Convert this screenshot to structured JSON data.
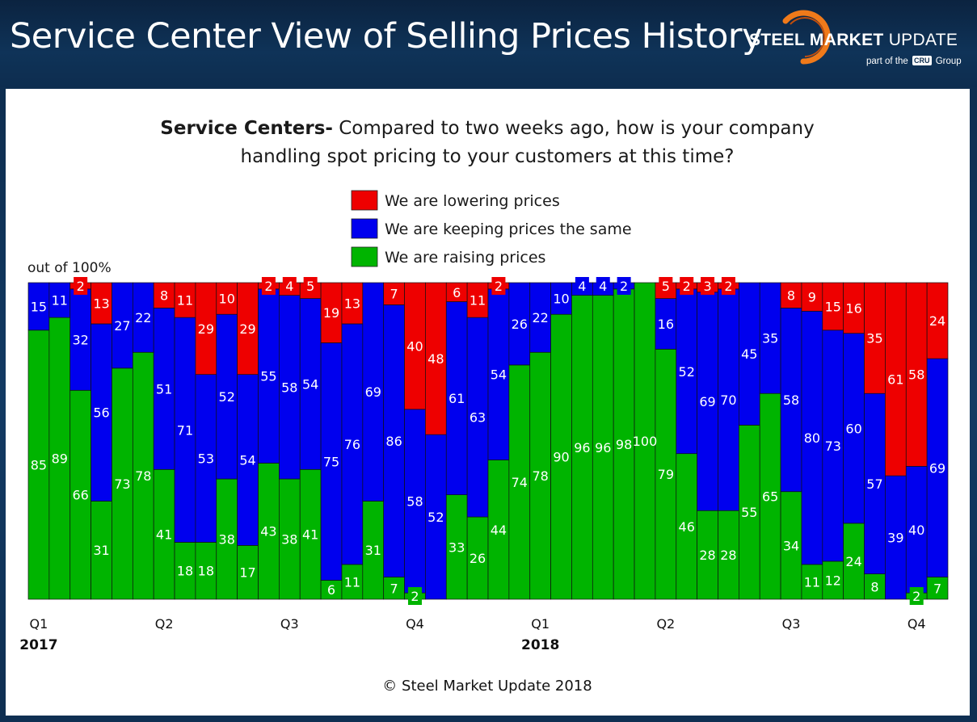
{
  "header": {
    "title": "Service Center View of Selling Prices History",
    "logo": {
      "brand": "STEEL MARKET UPDATE",
      "brand_bold": "STEEL MARKET",
      "brand_rest": "UPDATE",
      "tagline_pre": "part of the",
      "tagline_cru": "CRU",
      "tagline_post": "Group"
    }
  },
  "colors": {
    "lowering": "#ee0000",
    "same": "#0000ee",
    "raising": "#00b400",
    "header_bg": "#0f3358",
    "logo_arc": "#f07a1a"
  },
  "chart_data": {
    "type": "bar",
    "stacked": true,
    "question_bold": "Service Centers-",
    "question_line1": "Compared to two weeks ago, how is your company",
    "question_line2": "handling spot pricing to your customers at this time?",
    "ylabel": "out of 100%",
    "ylim": [
      0,
      100
    ],
    "grid": false,
    "legend_position": "top-center",
    "series": [
      {
        "name": "We are lowering prices",
        "key": "lowering",
        "color": "#ee0000",
        "values": [
          0,
          0,
          2,
          13,
          0,
          0,
          8,
          11,
          29,
          10,
          29,
          2,
          4,
          5,
          19,
          13,
          0,
          7,
          40,
          48,
          6,
          11,
          2,
          0,
          0,
          0,
          0,
          0,
          0,
          0,
          5,
          2,
          3,
          2,
          0,
          0,
          8,
          9,
          15,
          16,
          35,
          61,
          58,
          24
        ]
      },
      {
        "name": "We are keeping prices the same",
        "key": "same",
        "color": "#0000ee",
        "values": [
          15,
          11,
          32,
          56,
          27,
          22,
          51,
          71,
          53,
          52,
          54,
          55,
          58,
          54,
          75,
          76,
          69,
          86,
          58,
          52,
          61,
          63,
          54,
          26,
          22,
          10,
          4,
          4,
          2,
          0,
          16,
          52,
          69,
          70,
          45,
          35,
          58,
          80,
          73,
          60,
          57,
          39,
          40,
          69
        ]
      },
      {
        "name": "We are raising prices",
        "key": "raising",
        "color": "#00b400",
        "values": [
          85,
          89,
          66,
          31,
          73,
          78,
          41,
          18,
          18,
          38,
          17,
          43,
          38,
          41,
          6,
          11,
          31,
          7,
          2,
          0,
          33,
          26,
          44,
          74,
          78,
          90,
          96,
          96,
          98,
          100,
          79,
          46,
          28,
          28,
          55,
          65,
          34,
          11,
          12,
          24,
          8,
          0,
          2,
          7
        ]
      }
    ],
    "x_ticks": [
      {
        "index": 0,
        "label": "Q1",
        "year": "2017"
      },
      {
        "index": 6,
        "label": "Q2"
      },
      {
        "index": 12,
        "label": "Q3"
      },
      {
        "index": 18,
        "label": "Q4"
      },
      {
        "index": 24,
        "label": "Q1",
        "year": "2018"
      },
      {
        "index": 30,
        "label": "Q2"
      },
      {
        "index": 36,
        "label": "Q3"
      },
      {
        "index": 42,
        "label": "Q4"
      }
    ],
    "footer": "© Steel Market Update 2018"
  }
}
